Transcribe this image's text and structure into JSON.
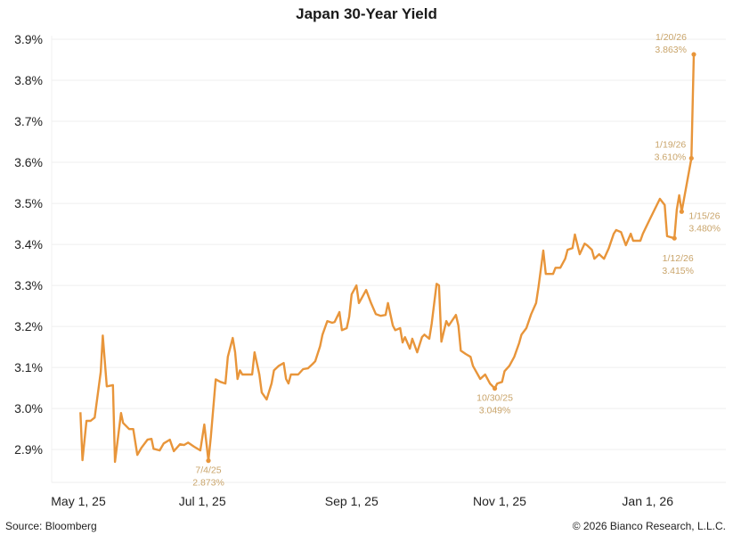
{
  "chart_data": {
    "type": "line",
    "title": "Japan 30-Year Yield",
    "xlabel": "",
    "ylabel": "",
    "ylim": [
      2.82,
      3.9
    ],
    "grid": true,
    "legend": "none",
    "line_color": "#e8953a",
    "annotation_color": "#c9a46a",
    "y_ticks": [
      {
        "value": 2.9,
        "label": "2.9%"
      },
      {
        "value": 3.0,
        "label": "3.0%"
      },
      {
        "value": 3.1,
        "label": "3.1%"
      },
      {
        "value": 3.2,
        "label": "3.2%"
      },
      {
        "value": 3.3,
        "label": "3.3%"
      },
      {
        "value": 3.4,
        "label": "3.4%"
      },
      {
        "value": 3.5,
        "label": "3.5%"
      },
      {
        "value": 3.6,
        "label": "3.6%"
      },
      {
        "value": 3.7,
        "label": "3.7%"
      },
      {
        "value": 3.8,
        "label": "3.8%"
      },
      {
        "value": 3.9,
        "label": "3.9%"
      }
    ],
    "x_ticks": [
      {
        "date": "2025-05-01",
        "label": "May 1, 25"
      },
      {
        "date": "2025-07-01",
        "label": "Jul 1, 25"
      },
      {
        "date": "2025-09-01",
        "label": "Sep 1, 25"
      },
      {
        "date": "2025-11-01",
        "label": "Nov 1, 25"
      },
      {
        "date": "2026-01-01",
        "label": "Jan 1, 26"
      }
    ],
    "series": [
      {
        "points": [
          [
            "2025-05-02",
            2.991
          ],
          [
            "2025-05-03",
            2.874
          ],
          [
            "2025-05-05",
            2.97
          ],
          [
            "2025-05-07",
            2.97
          ],
          [
            "2025-05-09",
            2.978
          ],
          [
            "2025-05-12",
            3.089
          ],
          [
            "2025-05-13",
            3.178
          ],
          [
            "2025-05-15",
            3.054
          ],
          [
            "2025-05-18",
            3.057
          ],
          [
            "2025-05-19",
            2.87
          ],
          [
            "2025-05-22",
            2.989
          ],
          [
            "2025-05-23",
            2.965
          ],
          [
            "2025-05-26",
            2.95
          ],
          [
            "2025-05-28",
            2.95
          ],
          [
            "2025-05-30",
            2.887
          ],
          [
            "2025-06-01",
            2.904
          ],
          [
            "2025-06-04",
            2.924
          ],
          [
            "2025-06-06",
            2.926
          ],
          [
            "2025-06-07",
            2.902
          ],
          [
            "2025-06-10",
            2.898
          ],
          [
            "2025-06-12",
            2.915
          ],
          [
            "2025-06-15",
            2.924
          ],
          [
            "2025-06-17",
            2.896
          ],
          [
            "2025-06-20",
            2.913
          ],
          [
            "2025-06-22",
            2.911
          ],
          [
            "2025-06-24",
            2.917
          ],
          [
            "2025-06-27",
            2.907
          ],
          [
            "2025-06-30",
            2.898
          ],
          [
            "2025-07-02",
            2.961
          ],
          [
            "2025-07-04",
            2.873
          ],
          [
            "2025-07-05",
            2.93
          ],
          [
            "2025-07-07",
            3.071
          ],
          [
            "2025-07-09",
            3.065
          ],
          [
            "2025-07-11",
            3.061
          ],
          [
            "2025-07-12",
            3.126
          ],
          [
            "2025-07-14",
            3.172
          ],
          [
            "2025-07-15",
            3.137
          ],
          [
            "2025-07-16",
            3.072
          ],
          [
            "2025-07-17",
            3.093
          ],
          [
            "2025-07-18",
            3.083
          ],
          [
            "2025-07-20",
            3.083
          ],
          [
            "2025-07-22",
            3.083
          ],
          [
            "2025-07-23",
            3.137
          ],
          [
            "2025-07-25",
            3.083
          ],
          [
            "2025-07-26",
            3.039
          ],
          [
            "2025-07-28",
            3.022
          ],
          [
            "2025-07-30",
            3.061
          ],
          [
            "2025-07-31",
            3.093
          ],
          [
            "2025-08-02",
            3.104
          ],
          [
            "2025-08-04",
            3.111
          ],
          [
            "2025-08-05",
            3.072
          ],
          [
            "2025-08-06",
            3.061
          ],
          [
            "2025-08-07",
            3.083
          ],
          [
            "2025-08-08",
            3.083
          ],
          [
            "2025-08-10",
            3.083
          ],
          [
            "2025-08-12",
            3.096
          ],
          [
            "2025-08-14",
            3.098
          ],
          [
            "2025-08-16",
            3.109
          ],
          [
            "2025-08-17",
            3.115
          ],
          [
            "2025-08-19",
            3.152
          ],
          [
            "2025-08-20",
            3.18
          ],
          [
            "2025-08-22",
            3.213
          ],
          [
            "2025-08-24",
            3.209
          ],
          [
            "2025-08-25",
            3.211
          ],
          [
            "2025-08-27",
            3.235
          ],
          [
            "2025-08-28",
            3.191
          ],
          [
            "2025-08-30",
            3.196
          ],
          [
            "2025-08-31",
            3.224
          ],
          [
            "2025-09-01",
            3.278
          ],
          [
            "2025-09-03",
            3.3
          ],
          [
            "2025-09-04",
            3.257
          ],
          [
            "2025-09-06",
            3.278
          ],
          [
            "2025-09-07",
            3.289
          ],
          [
            "2025-09-09",
            3.257
          ],
          [
            "2025-09-11",
            3.23
          ],
          [
            "2025-09-13",
            3.226
          ],
          [
            "2025-09-15",
            3.228
          ],
          [
            "2025-09-16",
            3.257
          ],
          [
            "2025-09-18",
            3.202
          ],
          [
            "2025-09-19",
            3.191
          ],
          [
            "2025-09-21",
            3.196
          ],
          [
            "2025-09-22",
            3.161
          ],
          [
            "2025-09-23",
            3.174
          ],
          [
            "2025-09-25",
            3.146
          ],
          [
            "2025-09-26",
            3.17
          ],
          [
            "2025-09-28",
            3.137
          ],
          [
            "2025-09-30",
            3.174
          ],
          [
            "2025-10-01",
            3.18
          ],
          [
            "2025-10-03",
            3.17
          ],
          [
            "2025-10-04",
            3.207
          ],
          [
            "2025-10-06",
            3.304
          ],
          [
            "2025-10-07",
            3.3
          ],
          [
            "2025-10-08",
            3.163
          ],
          [
            "2025-10-10",
            3.213
          ],
          [
            "2025-10-11",
            3.202
          ],
          [
            "2025-10-14",
            3.228
          ],
          [
            "2025-10-15",
            3.202
          ],
          [
            "2025-10-16",
            3.141
          ],
          [
            "2025-10-18",
            3.133
          ],
          [
            "2025-10-20",
            3.126
          ],
          [
            "2025-10-21",
            3.104
          ],
          [
            "2025-10-24",
            3.072
          ],
          [
            "2025-10-26",
            3.083
          ],
          [
            "2025-10-28",
            3.061
          ],
          [
            "2025-10-30",
            3.049
          ],
          [
            "2025-10-31",
            3.061
          ],
          [
            "2025-11-02",
            3.065
          ],
          [
            "2025-11-03",
            3.091
          ],
          [
            "2025-11-05",
            3.104
          ],
          [
            "2025-11-07",
            3.126
          ],
          [
            "2025-11-09",
            3.159
          ],
          [
            "2025-11-10",
            3.18
          ],
          [
            "2025-11-12",
            3.196
          ],
          [
            "2025-11-14",
            3.23
          ],
          [
            "2025-11-16",
            3.257
          ],
          [
            "2025-11-17",
            3.296
          ],
          [
            "2025-11-19",
            3.385
          ],
          [
            "2025-11-20",
            3.328
          ],
          [
            "2025-11-23",
            3.328
          ],
          [
            "2025-11-24",
            3.343
          ],
          [
            "2025-11-26",
            3.343
          ],
          [
            "2025-11-28",
            3.365
          ],
          [
            "2025-11-29",
            3.387
          ],
          [
            "2025-12-01",
            3.391
          ],
          [
            "2025-12-02",
            3.424
          ],
          [
            "2025-12-04",
            3.376
          ],
          [
            "2025-12-06",
            3.402
          ],
          [
            "2025-12-07",
            3.398
          ],
          [
            "2025-12-09",
            3.387
          ],
          [
            "2025-12-10",
            3.365
          ],
          [
            "2025-12-12",
            3.376
          ],
          [
            "2025-12-14",
            3.365
          ],
          [
            "2025-12-16",
            3.391
          ],
          [
            "2025-12-18",
            3.426
          ],
          [
            "2025-12-19",
            3.435
          ],
          [
            "2025-12-21",
            3.43
          ],
          [
            "2025-12-23",
            3.398
          ],
          [
            "2025-12-25",
            3.426
          ],
          [
            "2025-12-26",
            3.409
          ],
          [
            "2025-12-29",
            3.409
          ],
          [
            "2025-12-30",
            3.426
          ],
          [
            "2026-01-02",
            3.463
          ],
          [
            "2026-01-06",
            3.511
          ],
          [
            "2026-01-08",
            3.496
          ],
          [
            "2026-01-09",
            3.42
          ],
          [
            "2026-01-12",
            3.415
          ],
          [
            "2026-01-13",
            3.485
          ],
          [
            "2026-01-14",
            3.52
          ],
          [
            "2026-01-15",
            3.48
          ],
          [
            "2026-01-19",
            3.61
          ],
          [
            "2026-01-20",
            3.863
          ]
        ]
      }
    ],
    "annotations": [
      {
        "date": "2025-07-04",
        "value": 2.873,
        "date_label": "7/4/25",
        "value_label": "2.873%"
      },
      {
        "date": "2025-10-30",
        "value": 3.049,
        "date_label": "10/30/25",
        "value_label": "3.049%"
      },
      {
        "date": "2026-01-12",
        "value": 3.415,
        "date_label": "1/12/26",
        "value_label": "3.415%"
      },
      {
        "date": "2026-01-15",
        "value": 3.48,
        "date_label": "1/15/26",
        "value_label": "3.480%"
      },
      {
        "date": "2026-01-19",
        "value": 3.61,
        "date_label": "1/19/26",
        "value_label": "3.610%"
      },
      {
        "date": "2026-01-20",
        "value": 3.863,
        "date_label": "1/20/26",
        "value_label": "3.863%"
      }
    ]
  },
  "footer": {
    "source": "Source: Bloomberg",
    "copyright": "© 2026 Bianco Research, L.L.C."
  }
}
